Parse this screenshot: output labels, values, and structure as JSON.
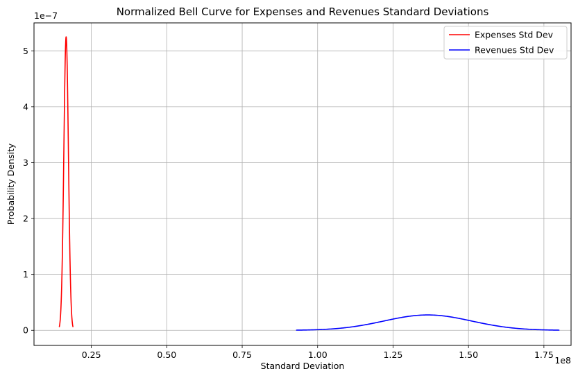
{
  "chart_data": {
    "type": "line",
    "title": "Normalized Bell Curve for Expenses and Revenues Standard Deviations",
    "xlabel": "Standard Deviation",
    "ylabel": "Probability Density",
    "x_scale_label": "1e8",
    "y_scale_label": "1e−7",
    "x_scale": 100000000,
    "y_scale": 1e-07,
    "xlim": [
      0.06,
      1.84
    ],
    "ylim": [
      -0.27,
      5.5
    ],
    "x_ticks": [
      0.25,
      0.5,
      0.75,
      1.0,
      1.25,
      1.5,
      1.75
    ],
    "x_tick_labels": [
      "0.25",
      "0.50",
      "0.75",
      "1.00",
      "1.25",
      "1.50",
      "1.75"
    ],
    "y_ticks": [
      0,
      1,
      2,
      3,
      4,
      5
    ],
    "y_tick_labels": [
      "0",
      "1",
      "2",
      "3",
      "4",
      "5"
    ],
    "grid": true,
    "legend_position": "top-right",
    "series": [
      {
        "name": "Expenses Std Dev",
        "color": "#ff0000",
        "distribution": "normal",
        "mean": 0.1665,
        "std": 0.0076,
        "x_range": [
          0.144,
          0.189
        ],
        "peak": 5.25
      },
      {
        "name": "Revenues Std Dev",
        "color": "#0000ff",
        "distribution": "normal",
        "mean": 1.365,
        "std": 0.145,
        "x_range": [
          0.93,
          1.8
        ],
        "peak": 0.275
      }
    ]
  }
}
